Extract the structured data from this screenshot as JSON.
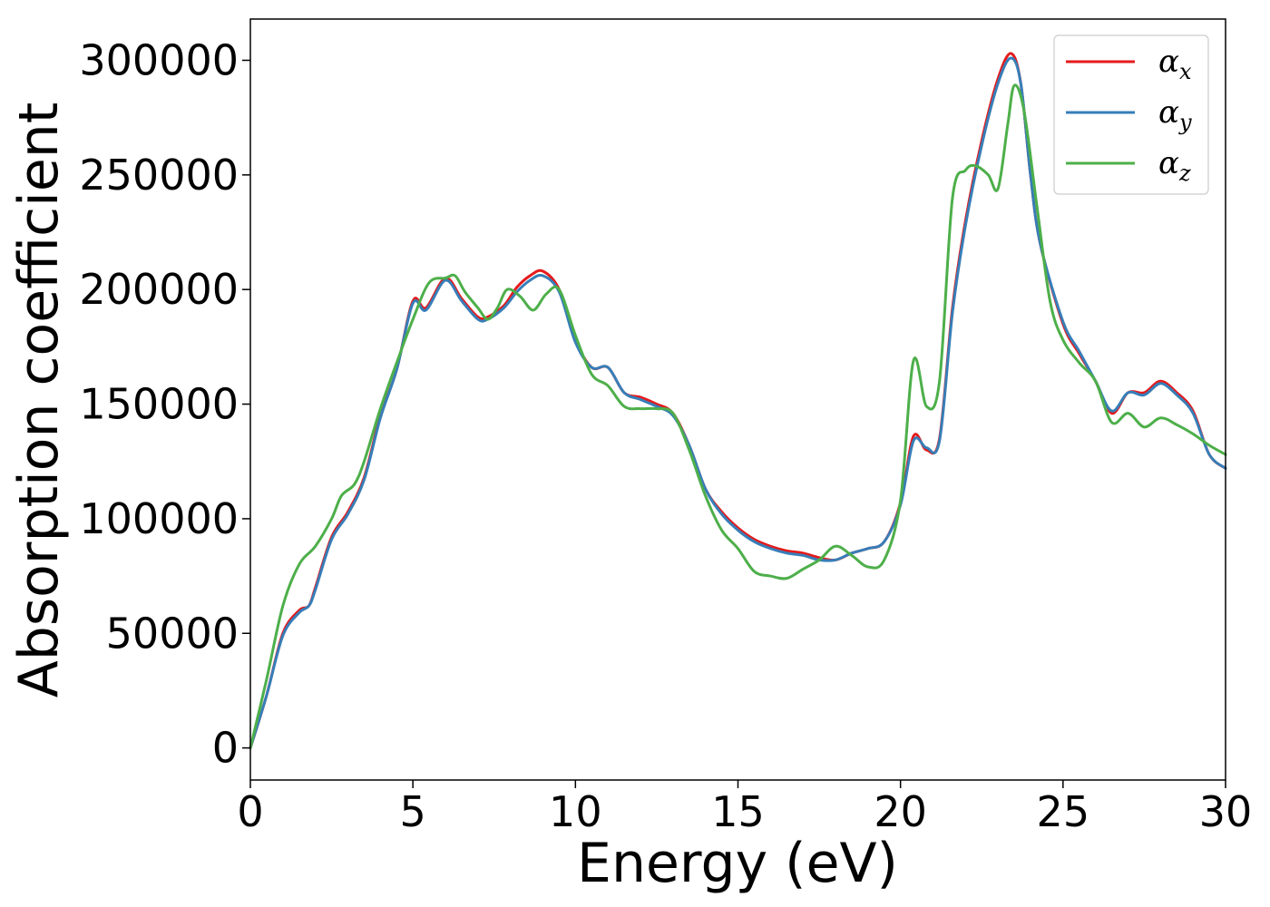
{
  "chart_data": {
    "type": "line",
    "xlabel": "Energy (eV)",
    "ylabel": "Absorption coefficient",
    "xlim": [
      0,
      30
    ],
    "ylim": [
      -14000,
      318000
    ],
    "xticks": [
      "0",
      "5",
      "10",
      "15",
      "20",
      "25",
      "30"
    ],
    "yticks": [
      "0",
      "50000",
      "100000",
      "150000",
      "200000",
      "250000",
      "300000"
    ],
    "grid": false,
    "legend_position": "top-right",
    "series": [
      {
        "name": "α",
        "subscript": "x",
        "color": "#e41a1c",
        "x": [
          0,
          0.5,
          1,
          1.5,
          1.8,
          2,
          2.5,
          3,
          3.5,
          4,
          4.5,
          5,
          5.4,
          6,
          6.5,
          7,
          7.3,
          7.8,
          8.2,
          8.6,
          9,
          9.5,
          10,
          10.5,
          11,
          11.5,
          12,
          12.5,
          13,
          13.5,
          14,
          14.5,
          15,
          15.5,
          16,
          16.5,
          17,
          17.5,
          18,
          18.5,
          19,
          19.5,
          20,
          20.4,
          20.8,
          21.2,
          21.6,
          22,
          22.5,
          23,
          23.4,
          23.7,
          24,
          24.3,
          25,
          25.5,
          26,
          26.5,
          27,
          27.5,
          28,
          28.5,
          29,
          29.5,
          30
        ],
        "y": [
          0,
          23000,
          50000,
          60000,
          62000,
          70000,
          92000,
          103000,
          118000,
          145000,
          165000,
          195000,
          192000,
          205000,
          196000,
          188000,
          188000,
          193000,
          201000,
          206000,
          208000,
          200000,
          178000,
          166000,
          166000,
          155000,
          153000,
          150000,
          146000,
          132000,
          113000,
          103000,
          96000,
          91000,
          88000,
          86000,
          85000,
          83000,
          82000,
          85000,
          87000,
          90000,
          107000,
          136000,
          130000,
          135000,
          192000,
          230000,
          265000,
          292000,
          303000,
          290000,
          250000,
          220000,
          185000,
          172000,
          160000,
          146000,
          155000,
          155000,
          160000,
          155000,
          147000,
          128000,
          122000
        ]
      },
      {
        "name": "α",
        "subscript": "y",
        "color": "#377eb8",
        "x": [
          0,
          0.5,
          1,
          1.5,
          1.8,
          2,
          2.5,
          3,
          3.5,
          4,
          4.5,
          5,
          5.4,
          6,
          6.5,
          7,
          7.3,
          7.8,
          8.2,
          8.6,
          9,
          9.5,
          10,
          10.5,
          11,
          11.5,
          12,
          12.5,
          13,
          13.5,
          14,
          14.5,
          15,
          15.5,
          16,
          16.5,
          17,
          17.5,
          18,
          18.5,
          19,
          19.5,
          20,
          20.4,
          20.8,
          21.2,
          21.6,
          22,
          22.5,
          23,
          23.4,
          23.7,
          24,
          24.3,
          25,
          25.5,
          26,
          26.5,
          27,
          27.5,
          28,
          28.5,
          29,
          29.5,
          30
        ],
        "y": [
          0,
          23000,
          49000,
          59000,
          62000,
          69000,
          91000,
          102000,
          117000,
          144000,
          165000,
          194000,
          191000,
          204000,
          195000,
          187000,
          187000,
          192000,
          199000,
          204000,
          206000,
          199000,
          177000,
          166000,
          166000,
          155000,
          152000,
          149000,
          145000,
          132000,
          113000,
          102000,
          95000,
          90000,
          87000,
          85000,
          84000,
          82000,
          82000,
          85000,
          87000,
          90000,
          106000,
          134000,
          131000,
          134000,
          190000,
          228000,
          263000,
          290000,
          301000,
          290000,
          250000,
          220000,
          186000,
          173000,
          160000,
          147000,
          155000,
          154000,
          159000,
          154000,
          146000,
          128000,
          122000
        ]
      },
      {
        "name": "α",
        "subscript": "z",
        "color": "#4daf4a",
        "x": [
          0,
          0.5,
          1,
          1.5,
          2,
          2.5,
          2.8,
          3.2,
          3.5,
          4,
          4.5,
          5,
          5.5,
          6,
          6.3,
          6.6,
          7,
          7.3,
          7.6,
          7.9,
          8.3,
          8.7,
          9.1,
          9.5,
          10,
          10.5,
          11,
          11.5,
          12,
          12.5,
          13,
          13.5,
          14,
          14.5,
          15,
          15.5,
          16,
          16.5,
          17,
          17.5,
          18,
          18.5,
          19,
          19.5,
          20,
          20.4,
          20.8,
          21.2,
          21.6,
          22,
          22.3,
          22.7,
          23,
          23.3,
          23.5,
          23.8,
          24.2,
          24.6,
          25,
          25.5,
          26,
          26.5,
          27,
          27.5,
          28,
          28.5,
          29,
          29.5,
          30
        ],
        "y": [
          0,
          30000,
          62000,
          80000,
          88000,
          100000,
          110000,
          115000,
          125000,
          148000,
          168000,
          187000,
          203000,
          205000,
          206000,
          199000,
          192000,
          187000,
          192000,
          200000,
          197000,
          191000,
          198000,
          200000,
          180000,
          163000,
          158000,
          149000,
          148000,
          148000,
          146000,
          130000,
          110000,
          95000,
          87000,
          77000,
          75000,
          74000,
          78000,
          82000,
          88000,
          84000,
          79000,
          82000,
          108000,
          169000,
          149000,
          160000,
          240000,
          252000,
          254000,
          250000,
          244000,
          272000,
          289000,
          278000,
          236000,
          195000,
          178000,
          168000,
          160000,
          142000,
          146000,
          140000,
          144000,
          141000,
          137000,
          132000,
          128000
        ]
      }
    ]
  }
}
